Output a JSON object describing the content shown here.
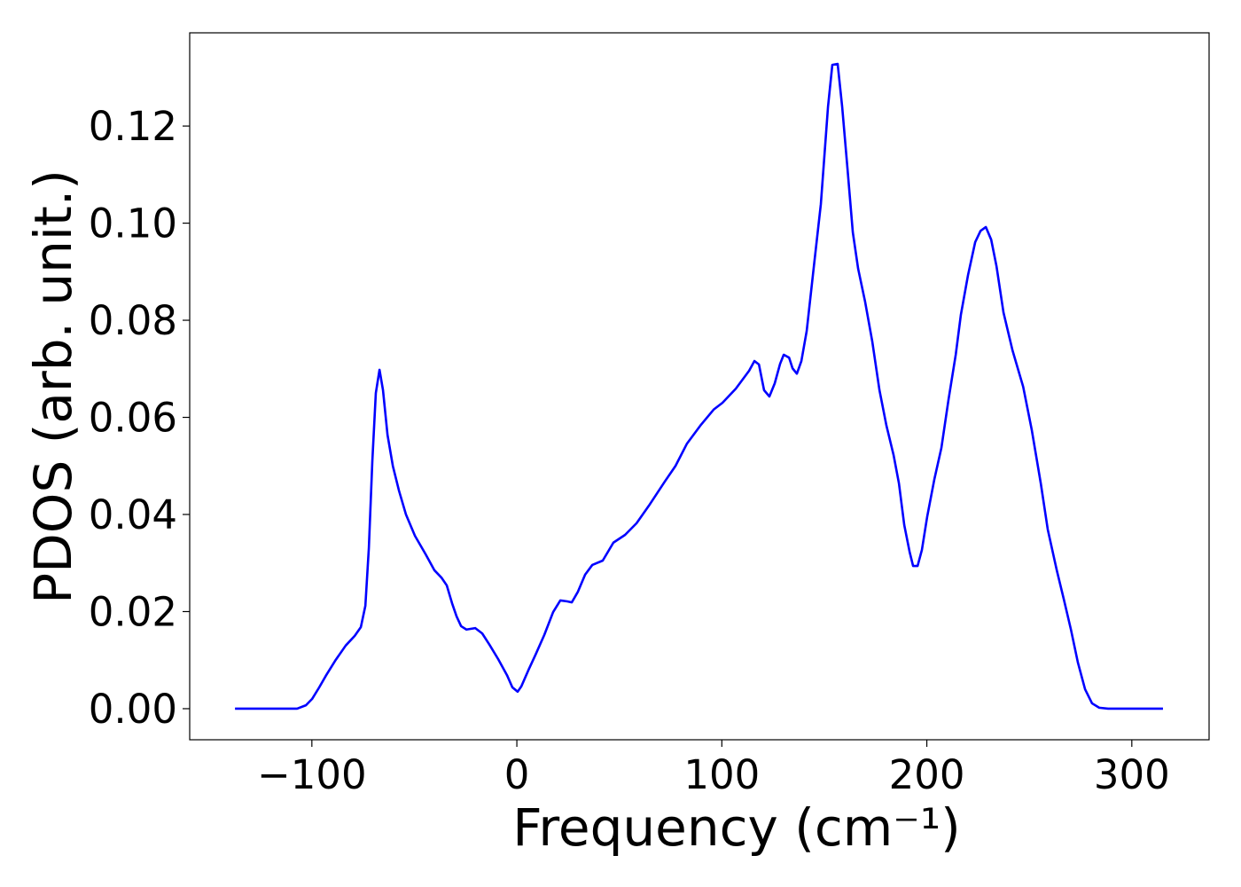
{
  "chart_data": {
    "type": "line",
    "xlabel": "Frequency (cm⁻¹)",
    "ylabel": "PDOS (arb. unit.)",
    "color": "#0000ff",
    "x": [
      -137.5,
      -107.2,
      -102.9,
      -99.9,
      -96.4,
      -93,
      -88.6,
      -83.5,
      -79.1,
      -76.1,
      -73.9,
      -72.2,
      -70.5,
      -68.8,
      -67,
      -65.3,
      -63.1,
      -60.5,
      -57.5,
      -54.1,
      -49.7,
      -44.5,
      -40.2,
      -36.8,
      -34.2,
      -31.6,
      -29.4,
      -27.2,
      -24.6,
      -20.3,
      -16.9,
      -13.4,
      -9.1,
      -4.8,
      -2.2,
      0.4,
      2.2,
      5.6,
      9.1,
      13.4,
      17.7,
      21.2,
      24.6,
      26.8,
      29.8,
      33.3,
      36.8,
      41.9,
      47.1,
      52.8,
      58.4,
      64.4,
      72.2,
      77.4,
      83,
      89.5,
      96,
      100.3,
      106.8,
      113.3,
      115.9,
      118.1,
      120.6,
      123.2,
      125.8,
      128.4,
      130.2,
      132.8,
      134.5,
      136.6,
      138.8,
      141.4,
      144.9,
      148.3,
      151.8,
      153.9,
      156.5,
      158.7,
      161.3,
      163.9,
      166.5,
      169.9,
      173.4,
      176.9,
      180.3,
      183.8,
      186.4,
      189,
      191.6,
      193.3,
      195.5,
      197.6,
      200.2,
      203.7,
      207.1,
      210.6,
      214.1,
      216.6,
      220.1,
      223.6,
      226.2,
      228.8,
      231.4,
      234,
      237.4,
      241.8,
      247,
      251.2,
      255.6,
      259,
      263.4,
      266.8,
      270.3,
      273.7,
      277.2,
      280.6,
      284.1,
      288.4,
      315.2
    ],
    "values": [
      0,
      0,
      0.0007,
      0.002,
      0.0044,
      0.0069,
      0.0099,
      0.013,
      0.015,
      0.0168,
      0.0212,
      0.0331,
      0.051,
      0.065,
      0.0698,
      0.0656,
      0.0564,
      0.05,
      0.0449,
      0.04,
      0.0356,
      0.0318,
      0.0285,
      0.027,
      0.0254,
      0.0217,
      0.019,
      0.017,
      0.0163,
      0.0166,
      0.0155,
      0.0132,
      0.0102,
      0.0069,
      0.0044,
      0.0035,
      0.0046,
      0.0079,
      0.0111,
      0.0152,
      0.0199,
      0.0223,
      0.0221,
      0.0219,
      0.0241,
      0.0276,
      0.0296,
      0.0305,
      0.0342,
      0.0358,
      0.0382,
      0.0418,
      0.0468,
      0.05,
      0.0546,
      0.0583,
      0.0616,
      0.063,
      0.0659,
      0.0696,
      0.0716,
      0.0709,
      0.0656,
      0.0643,
      0.067,
      0.071,
      0.0729,
      0.0723,
      0.0701,
      0.069,
      0.0716,
      0.0778,
      0.0911,
      0.1039,
      0.124,
      0.1326,
      0.1328,
      0.124,
      0.1112,
      0.0981,
      0.0906,
      0.0838,
      0.0756,
      0.0656,
      0.0583,
      0.0522,
      0.0464,
      0.0378,
      0.0323,
      0.0294,
      0.0294,
      0.0327,
      0.0396,
      0.0473,
      0.0537,
      0.0637,
      0.0729,
      0.0811,
      0.0893,
      0.0961,
      0.0984,
      0.0992,
      0.0966,
      0.0911,
      0.0816,
      0.0738,
      0.0663,
      0.0574,
      0.0464,
      0.0369,
      0.0285,
      0.0226,
      0.0163,
      0.0095,
      0.004,
      0.0011,
      0.0002,
      0,
      0
    ],
    "xlim": [
      -159.6,
      337.7
    ],
    "ylim": [
      -0.0064,
      0.1392
    ],
    "xticks": [
      {
        "value": -100,
        "label": "−100"
      },
      0,
      100,
      200,
      300
    ],
    "yticks": [
      {
        "value": 0,
        "label": "0.00"
      },
      {
        "value": 0.02,
        "label": "0.02"
      },
      {
        "value": 0.04,
        "label": "0.04"
      },
      {
        "value": 0.06,
        "label": "0.06"
      },
      {
        "value": 0.08,
        "label": "0.08"
      },
      {
        "value": 0.1,
        "label": "0.10"
      },
      {
        "value": 0.12,
        "label": "0.12"
      }
    ],
    "grid": false
  }
}
